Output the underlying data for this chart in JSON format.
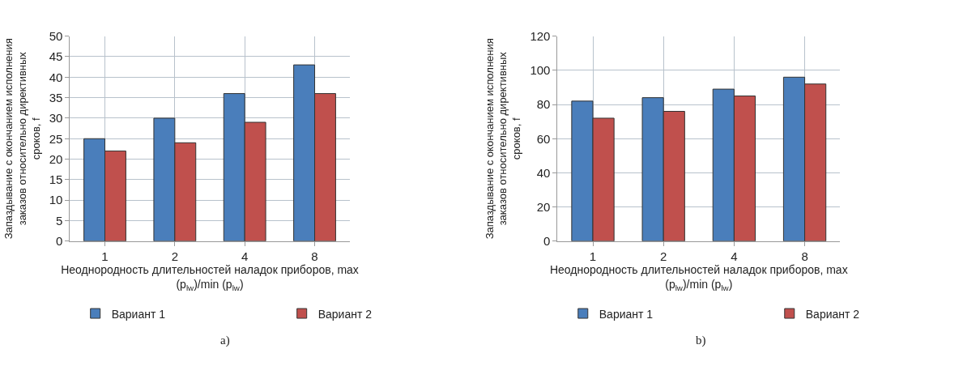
{
  "chart_data": [
    {
      "type": "bar",
      "categories": [
        "1",
        "2",
        "4",
        "8"
      ],
      "ylabel": "Запаздывание с окончанием исполнения заказов относительно директивных сроков, f",
      "xlabel": "Неоднородность длительностей наладок приборов, max (p$_{lw}$)/min (p$_{lw}$)",
      "series": [
        {
          "name": "Вариант 1",
          "color": "#4a7ebb",
          "values": [
            25,
            30,
            36,
            43
          ]
        },
        {
          "name": "Вариант 2",
          "color": "#c0504d",
          "values": [
            22,
            24,
            29,
            36
          ]
        }
      ],
      "ylim": [
        0,
        50
      ],
      "yticks": [
        0,
        5,
        10,
        15,
        20,
        25,
        30,
        35,
        40,
        45,
        50
      ],
      "grid": true,
      "legend": "bottom",
      "annotations": [
        "a)"
      ]
    },
    {
      "type": "bar",
      "categories": [
        "1",
        "2",
        "4",
        "8"
      ],
      "ylabel": "Запаздывание с окончанием исполнения заказов относительно директивных сроков, f",
      "xlabel": "Неоднородность длительностей наладок приборов, max (p$_{lw}$)/min (p$_{lw}$)",
      "series": [
        {
          "name": "Вариант 1",
          "color": "#4a7ebb",
          "values": [
            82,
            84,
            89,
            96
          ]
        },
        {
          "name": "Вариант 2",
          "color": "#c0504d",
          "values": [
            72,
            76,
            85,
            92
          ]
        }
      ],
      "ylim": [
        0,
        120
      ],
      "yticks": [
        0,
        20,
        40,
        60,
        80,
        100,
        120
      ],
      "grid": true,
      "legend": "bottom",
      "annotations": [
        "b)"
      ]
    }
  ]
}
